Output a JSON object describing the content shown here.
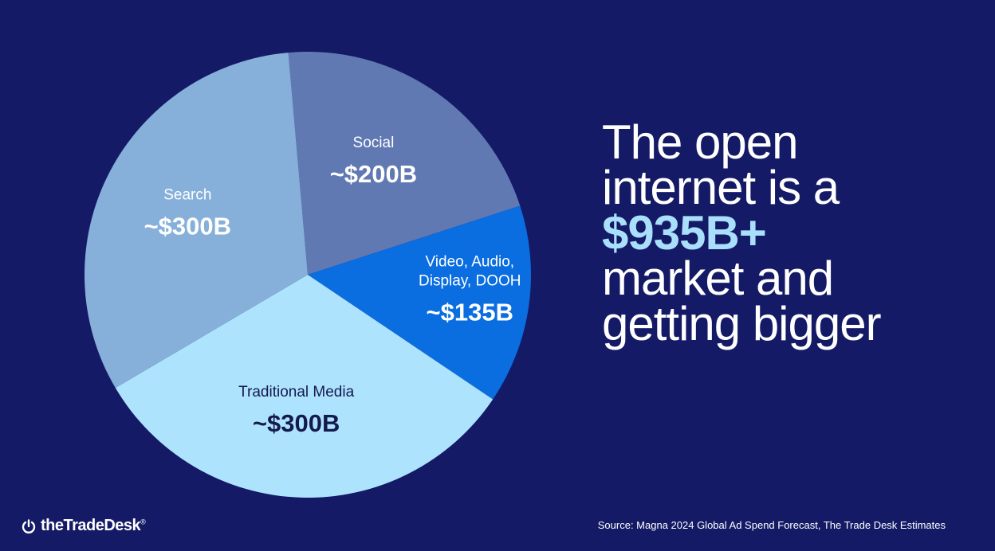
{
  "chart_data": {
    "type": "pie",
    "slices": [
      {
        "label": "Social",
        "value_label": "~$200B",
        "value": 200,
        "color": "#6079b3",
        "text_color": "#ffffff"
      },
      {
        "label": "Video, Audio, Display, DOOH",
        "label_lines": [
          "Video, Audio,",
          "Display, DOOH"
        ],
        "value_label": "~$135B",
        "value": 135,
        "color": "#0a6de0",
        "text_color": "#ffffff"
      },
      {
        "label": "Traditional Media",
        "value_label": "~$300B",
        "value": 300,
        "color": "#ade3fd",
        "text_color": "#141a4d"
      },
      {
        "label": "Search",
        "value_label": "~$300B",
        "value": 300,
        "color": "#86b0da",
        "text_color": "#ffffff"
      }
    ]
  },
  "headline": {
    "line1": "The open",
    "line2": "internet is a",
    "highlight": "$935B+",
    "line4": "market and",
    "line5": "getting bigger"
  },
  "footer": {
    "logo_text": "theTradeDesk",
    "logo_mark": "®",
    "source": "Source: Magna 2024 Global Ad Spend Forecast, The Trade Desk Estimates"
  },
  "colors": {
    "background": "#141a66",
    "highlight": "#a9dffb"
  }
}
